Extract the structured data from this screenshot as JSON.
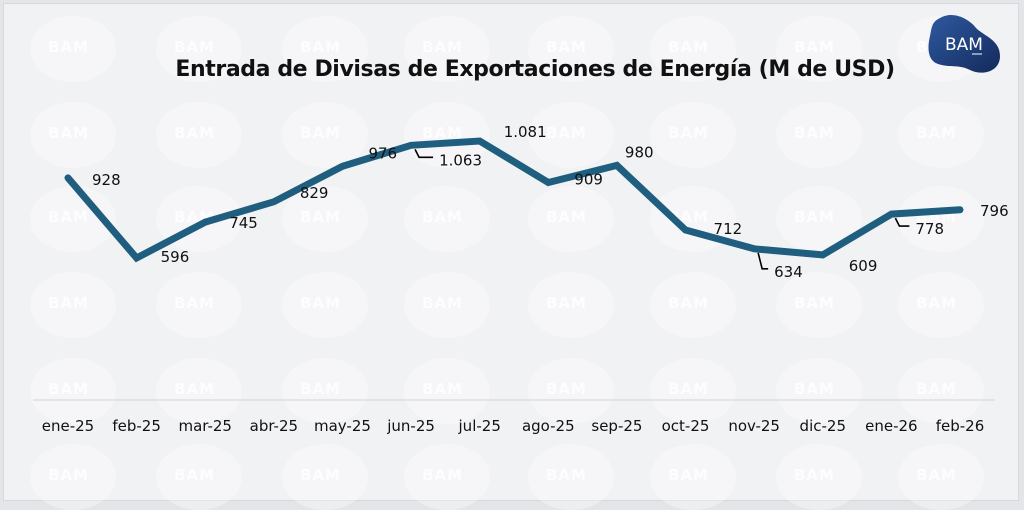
{
  "watermark_text": "BAM",
  "logo": {
    "text": "BAM",
    "colors": {
      "dark": "#142a5c",
      "light": "#2e5aa0"
    }
  },
  "colors": {
    "line": "#1f5e7e",
    "leader": "#000000",
    "axis": "#d0d3d8"
  },
  "chart_data": {
    "type": "line",
    "title": "Entrada de Divisas de Exportaciones de Energía (M de USD)",
    "xlabel": "",
    "ylabel": "",
    "categories": [
      "ene-25",
      "feb-25",
      "mar-25",
      "abr-25",
      "may-25",
      "jun-25",
      "jul-25",
      "ago-25",
      "sep-25",
      "oct-25",
      "nov-25",
      "dic-25",
      "ene-26",
      "feb-26"
    ],
    "series": [
      {
        "name": "Entrada de Divisas (M de USD)",
        "values": [
          928,
          596,
          745,
          829,
          976,
          1063,
          1081,
          909,
          980,
          712,
          634,
          609,
          778,
          796
        ],
        "labels": [
          "928",
          "596",
          "745",
          "829",
          "976",
          "1.063",
          "1.081",
          "909",
          "980",
          "712",
          "634",
          "609",
          "778",
          "796"
        ]
      }
    ],
    "ylim": [
      300,
      1200
    ],
    "grid": false,
    "legend": "none",
    "y_axis_visible": false
  }
}
